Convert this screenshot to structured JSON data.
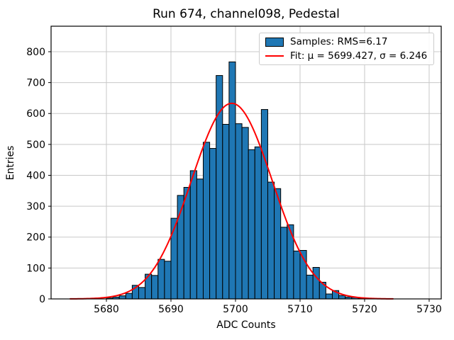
{
  "title": "Run 674, channel098, Pedestal",
  "xlabel": "ADC Counts",
  "ylabel": "Entries",
  "legend": {
    "samples_label": "Samples: RMS=6.17",
    "fit_label": "Fit: μ = 5699.427, σ = 6.246"
  },
  "colors": {
    "bar_fill": "#1f77b4",
    "bar_edge": "#000000",
    "fit_line": "#ff0000",
    "grid": "#c8c8c8",
    "spine": "#000000",
    "legend_border": "#cccccc"
  },
  "chart_data": {
    "type": "bar",
    "subtype": "histogram",
    "title": "Run 674, channel098, Pedestal",
    "xlabel": "ADC Counts",
    "ylabel": "Entries",
    "grid": true,
    "legend_position": "upper right",
    "legend_entries": [
      "Samples: RMS=6.17",
      "Fit: μ = 5699.427, σ = 6.246"
    ],
    "samples_rms": 6.17,
    "bin_width": 1,
    "bin_left_edges": [
      5680,
      5681,
      5682,
      5683,
      5684,
      5685,
      5686,
      5687,
      5688,
      5689,
      5690,
      5691,
      5692,
      5693,
      5694,
      5695,
      5696,
      5697,
      5698,
      5699,
      5700,
      5701,
      5702,
      5703,
      5704,
      5705,
      5706,
      5707,
      5708,
      5709,
      5710,
      5711,
      5712,
      5713,
      5714,
      5715,
      5716,
      5717,
      5718,
      5719
    ],
    "values": [
      3,
      6,
      10,
      18,
      44,
      37,
      80,
      76,
      128,
      122,
      261,
      335,
      361,
      415,
      388,
      507,
      487,
      723,
      565,
      767,
      567,
      555,
      483,
      492,
      613,
      378,
      357,
      232,
      240,
      155,
      157,
      77,
      102,
      54,
      16,
      27,
      11,
      6,
      5,
      2
    ],
    "fit": {
      "type": "gaussian",
      "mu": 5699.427,
      "sigma": 6.246,
      "amplitude": 633,
      "x_start": 5674.4,
      "x_end": 5724.4
    },
    "x_ticks": [
      5680,
      5690,
      5700,
      5710,
      5720,
      5730
    ],
    "y_ticks": [
      0,
      100,
      200,
      300,
      400,
      500,
      600,
      700,
      800
    ],
    "xlim": [
      5671.43,
      5731.87
    ],
    "ylim": [
      0,
      882.5
    ]
  }
}
